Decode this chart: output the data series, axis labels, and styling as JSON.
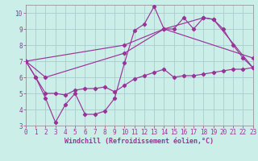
{
  "background_color": "#cceee8",
  "grid_color": "#aacccc",
  "line_color": "#993399",
  "xlim": [
    0,
    23
  ],
  "ylim": [
    3,
    10.5
  ],
  "yticks": [
    3,
    4,
    5,
    6,
    7,
    8,
    9,
    10
  ],
  "xticks": [
    0,
    1,
    2,
    3,
    4,
    5,
    6,
    7,
    8,
    9,
    10,
    11,
    12,
    13,
    14,
    15,
    16,
    17,
    18,
    19,
    20,
    21,
    22,
    23
  ],
  "xlabel": "Windchill (Refroidissement éolien,°C)",
  "line1_x": [
    0,
    1,
    2,
    3,
    4,
    5,
    6,
    7,
    8,
    9,
    10,
    11,
    12,
    13,
    14,
    15,
    16,
    17,
    18,
    19,
    20,
    21,
    22,
    23
  ],
  "line1_y": [
    7.0,
    6.0,
    4.7,
    3.2,
    4.3,
    5.0,
    3.7,
    3.7,
    3.9,
    4.7,
    6.9,
    8.9,
    9.3,
    10.4,
    9.0,
    9.0,
    9.7,
    9.0,
    9.7,
    9.6,
    9.0,
    8.0,
    7.2,
    6.6
  ],
  "line2_x": [
    0,
    1,
    2,
    3,
    4,
    5,
    6,
    7,
    8,
    9,
    10,
    11,
    12,
    13,
    14,
    15,
    16,
    17,
    18,
    19,
    20,
    21,
    22,
    23
  ],
  "line2_y": [
    7.0,
    6.0,
    5.0,
    5.0,
    4.9,
    5.2,
    5.3,
    5.3,
    5.4,
    5.1,
    5.5,
    5.9,
    6.1,
    6.3,
    6.5,
    6.0,
    6.1,
    6.1,
    6.2,
    6.3,
    6.4,
    6.5,
    6.5,
    6.6
  ],
  "line3_x": [
    0,
    2,
    10,
    14,
    18,
    19,
    23
  ],
  "line3_y": [
    7.0,
    6.0,
    7.5,
    9.0,
    9.7,
    9.6,
    6.6
  ],
  "line4_x": [
    0,
    10,
    14,
    23
  ],
  "line4_y": [
    7.0,
    8.0,
    9.0,
    7.2
  ],
  "tick_fontsize": 5.5,
  "xlabel_fontsize": 6.0
}
